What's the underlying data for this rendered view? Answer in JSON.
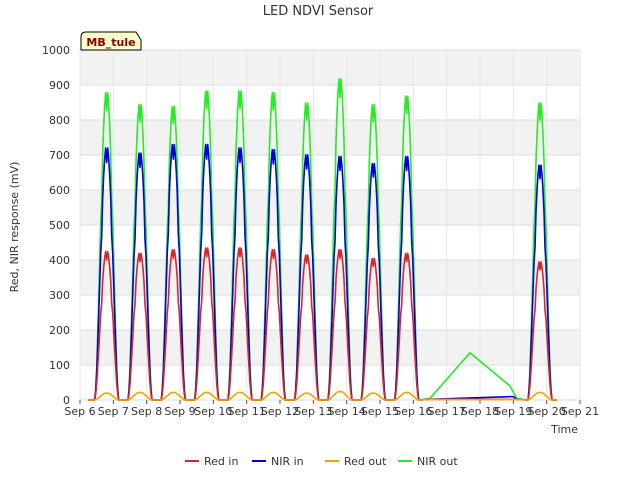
{
  "chart_data": {
    "type": "line",
    "title": "LED NDVI Sensor",
    "xlabel": "Time",
    "ylabel": "Red, NIR response (mV)",
    "ylim": [
      0,
      1000
    ],
    "y_ticks": [
      0,
      100,
      200,
      300,
      400,
      500,
      600,
      700,
      800,
      900,
      1000
    ],
    "xlim": [
      6,
      21
    ],
    "x_ticks": [
      6,
      7,
      8,
      9,
      10,
      11,
      12,
      13,
      14,
      15,
      16,
      17,
      18,
      19,
      20,
      21
    ],
    "x_tick_labels": [
      "Sep 6",
      "Sep 7",
      "Sep 8",
      "Sep 9",
      "Sep 10",
      "Sep 11",
      "Sep 12",
      "Sep 13",
      "Sep 14",
      "Sep 15",
      "Sep 16",
      "Sep 17",
      "Sep 18",
      "Sep 19",
      "Sep 20",
      "Sep 21"
    ],
    "grid": true,
    "legend_position": "bottom",
    "tag_label": "MB_tule",
    "daily_peaks": {
      "days": [
        6.8,
        7.8,
        8.8,
        9.8,
        10.8,
        11.8,
        12.8,
        13.8,
        14.8,
        15.8,
        19.8
      ],
      "red_in": [
        430,
        425,
        435,
        440,
        440,
        435,
        420,
        435,
        410,
        425,
        400
      ],
      "nir_in": [
        730,
        715,
        740,
        740,
        730,
        725,
        710,
        705,
        685,
        705,
        680
      ],
      "red_out": [
        20,
        22,
        22,
        22,
        22,
        22,
        20,
        25,
        20,
        22,
        22
      ],
      "nir_out": [
        890,
        855,
        850,
        895,
        895,
        890,
        860,
        930,
        855,
        880,
        860
      ]
    },
    "gap_segments": {
      "nir_out": [
        [
          16.5,
          5
        ],
        [
          17.7,
          135
        ],
        [
          18.9,
          40
        ],
        [
          19.1,
          5
        ]
      ],
      "nir_in": [
        [
          16.5,
          2
        ],
        [
          19.0,
          10
        ],
        [
          19.1,
          2
        ]
      ],
      "red_in": [
        [
          16.5,
          2
        ],
        [
          19.1,
          2
        ]
      ],
      "red_out": [
        [
          16.5,
          1
        ],
        [
          19.1,
          1
        ]
      ]
    },
    "series": [
      {
        "key": "red_in",
        "name": "Red in",
        "color": "#d62728"
      },
      {
        "key": "nir_in",
        "name": "NIR in",
        "color": "#0000dd"
      },
      {
        "key": "red_out",
        "name": "Red out",
        "color": "#f5a300"
      },
      {
        "key": "nir_out",
        "name": "NIR out",
        "color": "#22ee22"
      }
    ]
  }
}
